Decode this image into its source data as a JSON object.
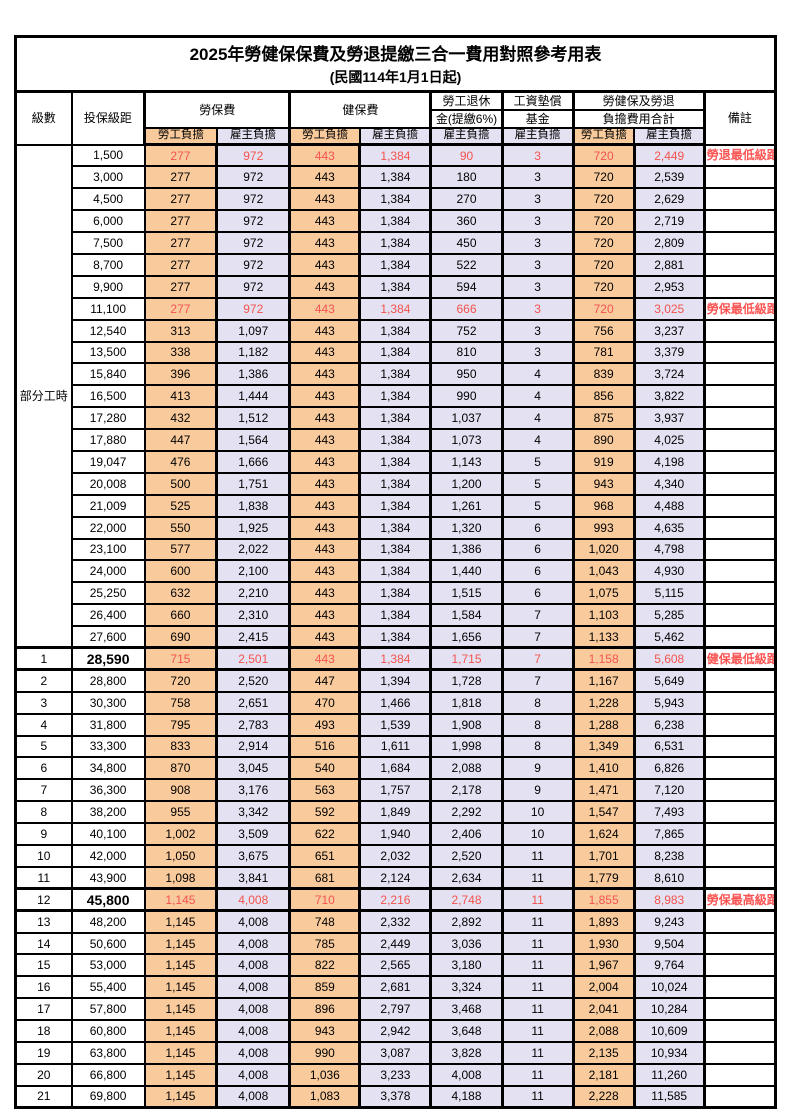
{
  "document": {
    "title": "2025年勞健保保費及勞退提繳三合一費用對照參考用表",
    "subtitle": "(民國114年1月1日起)"
  },
  "colors": {
    "employee_column_bg": "#f9cb9c",
    "employer_column_bg": "#e4e2f2",
    "highlight_text": "#f4534e",
    "note_text": "#fa5452",
    "grid_line": "#000000"
  },
  "header": {
    "level": "級數",
    "bracket": "投保級距",
    "labor_group": "勞保費",
    "health_group": "健保費",
    "pension_line1": "勞工退休",
    "pension_line2": "金(提繳6%)",
    "wage_fund_line1": "工資墊償",
    "wage_fund_line2": "基金",
    "total_line1": "勞健保及勞退",
    "total_line2": "負擔費用合計",
    "note": "備註",
    "employee": "勞工負擔",
    "employer": "雇主負擔"
  },
  "table": {
    "part_time_group_label": "部分工時",
    "part_time_row_count": 23,
    "value_column_names": [
      "labor-employee",
      "labor-employer",
      "health-employee",
      "health-employer",
      "pension-employer",
      "wage-fund-employer",
      "total-employee",
      "total-employer"
    ],
    "value_column_classes": [
      "emp",
      "er gl",
      "emp gl",
      "er gl",
      "er gl",
      "er gl",
      "emp gl",
      "er gl"
    ],
    "rows": [
      {
        "level": "",
        "bracket": "1,500",
        "values": [
          "277",
          "972",
          "443",
          "1,384",
          "90",
          "3",
          "720",
          "2,449"
        ],
        "note": "勞退最低級距",
        "red": true,
        "strong": false
      },
      {
        "level": "",
        "bracket": "3,000",
        "values": [
          "277",
          "972",
          "443",
          "1,384",
          "180",
          "3",
          "720",
          "2,539"
        ],
        "note": "",
        "red": false,
        "strong": false
      },
      {
        "level": "",
        "bracket": "4,500",
        "values": [
          "277",
          "972",
          "443",
          "1,384",
          "270",
          "3",
          "720",
          "2,629"
        ],
        "note": "",
        "red": false,
        "strong": false
      },
      {
        "level": "",
        "bracket": "6,000",
        "values": [
          "277",
          "972",
          "443",
          "1,384",
          "360",
          "3",
          "720",
          "2,719"
        ],
        "note": "",
        "red": false,
        "strong": false
      },
      {
        "level": "",
        "bracket": "7,500",
        "values": [
          "277",
          "972",
          "443",
          "1,384",
          "450",
          "3",
          "720",
          "2,809"
        ],
        "note": "",
        "red": false,
        "strong": false
      },
      {
        "level": "",
        "bracket": "8,700",
        "values": [
          "277",
          "972",
          "443",
          "1,384",
          "522",
          "3",
          "720",
          "2,881"
        ],
        "note": "",
        "red": false,
        "strong": false
      },
      {
        "level": "",
        "bracket": "9,900",
        "values": [
          "277",
          "972",
          "443",
          "1,384",
          "594",
          "3",
          "720",
          "2,953"
        ],
        "note": "",
        "red": false,
        "strong": false
      },
      {
        "level": "",
        "bracket": "11,100",
        "values": [
          "277",
          "972",
          "443",
          "1,384",
          "666",
          "3",
          "720",
          "3,025"
        ],
        "note": "勞保最低級距",
        "red": true,
        "strong": false
      },
      {
        "level": "",
        "bracket": "12,540",
        "values": [
          "313",
          "1,097",
          "443",
          "1,384",
          "752",
          "3",
          "756",
          "3,237"
        ],
        "note": "",
        "red": false,
        "strong": false
      },
      {
        "level": "",
        "bracket": "13,500",
        "values": [
          "338",
          "1,182",
          "443",
          "1,384",
          "810",
          "3",
          "781",
          "3,379"
        ],
        "note": "",
        "red": false,
        "strong": false
      },
      {
        "level": "",
        "bracket": "15,840",
        "values": [
          "396",
          "1,386",
          "443",
          "1,384",
          "950",
          "4",
          "839",
          "3,724"
        ],
        "note": "",
        "red": false,
        "strong": false
      },
      {
        "level": "",
        "bracket": "16,500",
        "values": [
          "413",
          "1,444",
          "443",
          "1,384",
          "990",
          "4",
          "856",
          "3,822"
        ],
        "note": "",
        "red": false,
        "strong": false
      },
      {
        "level": "",
        "bracket": "17,280",
        "values": [
          "432",
          "1,512",
          "443",
          "1,384",
          "1,037",
          "4",
          "875",
          "3,937"
        ],
        "note": "",
        "red": false,
        "strong": false
      },
      {
        "level": "",
        "bracket": "17,880",
        "values": [
          "447",
          "1,564",
          "443",
          "1,384",
          "1,073",
          "4",
          "890",
          "4,025"
        ],
        "note": "",
        "red": false,
        "strong": false
      },
      {
        "level": "",
        "bracket": "19,047",
        "values": [
          "476",
          "1,666",
          "443",
          "1,384",
          "1,143",
          "5",
          "919",
          "4,198"
        ],
        "note": "",
        "red": false,
        "strong": false
      },
      {
        "level": "",
        "bracket": "20,008",
        "values": [
          "500",
          "1,751",
          "443",
          "1,384",
          "1,200",
          "5",
          "943",
          "4,340"
        ],
        "note": "",
        "red": false,
        "strong": false
      },
      {
        "level": "",
        "bracket": "21,009",
        "values": [
          "525",
          "1,838",
          "443",
          "1,384",
          "1,261",
          "5",
          "968",
          "4,488"
        ],
        "note": "",
        "red": false,
        "strong": false
      },
      {
        "level": "",
        "bracket": "22,000",
        "values": [
          "550",
          "1,925",
          "443",
          "1,384",
          "1,320",
          "6",
          "993",
          "4,635"
        ],
        "note": "",
        "red": false,
        "strong": false
      },
      {
        "level": "",
        "bracket": "23,100",
        "values": [
          "577",
          "2,022",
          "443",
          "1,384",
          "1,386",
          "6",
          "1,020",
          "4,798"
        ],
        "note": "",
        "red": false,
        "strong": false
      },
      {
        "level": "",
        "bracket": "24,000",
        "values": [
          "600",
          "2,100",
          "443",
          "1,384",
          "1,440",
          "6",
          "1,043",
          "4,930"
        ],
        "note": "",
        "red": false,
        "strong": false
      },
      {
        "level": "",
        "bracket": "25,250",
        "values": [
          "632",
          "2,210",
          "443",
          "1,384",
          "1,515",
          "6",
          "1,075",
          "5,115"
        ],
        "note": "",
        "red": false,
        "strong": false
      },
      {
        "level": "",
        "bracket": "26,400",
        "values": [
          "660",
          "2,310",
          "443",
          "1,384",
          "1,584",
          "7",
          "1,103",
          "5,285"
        ],
        "note": "",
        "red": false,
        "strong": false
      },
      {
        "level": "",
        "bracket": "27,600",
        "values": [
          "690",
          "2,415",
          "443",
          "1,384",
          "1,656",
          "7",
          "1,133",
          "5,462"
        ],
        "note": "",
        "red": false,
        "strong": false
      },
      {
        "level": "1",
        "bracket": "28,590",
        "values": [
          "715",
          "2,501",
          "443",
          "1,384",
          "1,715",
          "7",
          "1,158",
          "5,608"
        ],
        "note": "健保最低級距",
        "red": true,
        "strong": true
      },
      {
        "level": "2",
        "bracket": "28,800",
        "values": [
          "720",
          "2,520",
          "447",
          "1,394",
          "1,728",
          "7",
          "1,167",
          "5,649"
        ],
        "note": "",
        "red": false,
        "strong": false
      },
      {
        "level": "3",
        "bracket": "30,300",
        "values": [
          "758",
          "2,651",
          "470",
          "1,466",
          "1,818",
          "8",
          "1,228",
          "5,943"
        ],
        "note": "",
        "red": false,
        "strong": false
      },
      {
        "level": "4",
        "bracket": "31,800",
        "values": [
          "795",
          "2,783",
          "493",
          "1,539",
          "1,908",
          "8",
          "1,288",
          "6,238"
        ],
        "note": "",
        "red": false,
        "strong": false
      },
      {
        "level": "5",
        "bracket": "33,300",
        "values": [
          "833",
          "2,914",
          "516",
          "1,611",
          "1,998",
          "8",
          "1,349",
          "6,531"
        ],
        "note": "",
        "red": false,
        "strong": false
      },
      {
        "level": "6",
        "bracket": "34,800",
        "values": [
          "870",
          "3,045",
          "540",
          "1,684",
          "2,088",
          "9",
          "1,410",
          "6,826"
        ],
        "note": "",
        "red": false,
        "strong": false
      },
      {
        "level": "7",
        "bracket": "36,300",
        "values": [
          "908",
          "3,176",
          "563",
          "1,757",
          "2,178",
          "9",
          "1,471",
          "7,120"
        ],
        "note": "",
        "red": false,
        "strong": false
      },
      {
        "level": "8",
        "bracket": "38,200",
        "values": [
          "955",
          "3,342",
          "592",
          "1,849",
          "2,292",
          "10",
          "1,547",
          "7,493"
        ],
        "note": "",
        "red": false,
        "strong": false
      },
      {
        "level": "9",
        "bracket": "40,100",
        "values": [
          "1,002",
          "3,509",
          "622",
          "1,940",
          "2,406",
          "10",
          "1,624",
          "7,865"
        ],
        "note": "",
        "red": false,
        "strong": false
      },
      {
        "level": "10",
        "bracket": "42,000",
        "values": [
          "1,050",
          "3,675",
          "651",
          "2,032",
          "2,520",
          "11",
          "1,701",
          "8,238"
        ],
        "note": "",
        "red": false,
        "strong": false
      },
      {
        "level": "11",
        "bracket": "43,900",
        "values": [
          "1,098",
          "3,841",
          "681",
          "2,124",
          "2,634",
          "11",
          "1,779",
          "8,610"
        ],
        "note": "",
        "red": false,
        "strong": false
      },
      {
        "level": "12",
        "bracket": "45,800",
        "values": [
          "1,145",
          "4,008",
          "710",
          "2,216",
          "2,748",
          "11",
          "1,855",
          "8,983"
        ],
        "note": "勞保最高級距",
        "red": true,
        "strong": true
      },
      {
        "level": "13",
        "bracket": "48,200",
        "values": [
          "1,145",
          "4,008",
          "748",
          "2,332",
          "2,892",
          "11",
          "1,893",
          "9,243"
        ],
        "note": "",
        "red": false,
        "strong": false
      },
      {
        "level": "14",
        "bracket": "50,600",
        "values": [
          "1,145",
          "4,008",
          "785",
          "2,449",
          "3,036",
          "11",
          "1,930",
          "9,504"
        ],
        "note": "",
        "red": false,
        "strong": false
      },
      {
        "level": "15",
        "bracket": "53,000",
        "values": [
          "1,145",
          "4,008",
          "822",
          "2,565",
          "3,180",
          "11",
          "1,967",
          "9,764"
        ],
        "note": "",
        "red": false,
        "strong": false
      },
      {
        "level": "16",
        "bracket": "55,400",
        "values": [
          "1,145",
          "4,008",
          "859",
          "2,681",
          "3,324",
          "11",
          "2,004",
          "10,024"
        ],
        "note": "",
        "red": false,
        "strong": false
      },
      {
        "level": "17",
        "bracket": "57,800",
        "values": [
          "1,145",
          "4,008",
          "896",
          "2,797",
          "3,468",
          "11",
          "2,041",
          "10,284"
        ],
        "note": "",
        "red": false,
        "strong": false
      },
      {
        "level": "18",
        "bracket": "60,800",
        "values": [
          "1,145",
          "4,008",
          "943",
          "2,942",
          "3,648",
          "11",
          "2,088",
          "10,609"
        ],
        "note": "",
        "red": false,
        "strong": false
      },
      {
        "level": "19",
        "bracket": "63,800",
        "values": [
          "1,145",
          "4,008",
          "990",
          "3,087",
          "3,828",
          "11",
          "2,135",
          "10,934"
        ],
        "note": "",
        "red": false,
        "strong": false
      },
      {
        "level": "20",
        "bracket": "66,800",
        "values": [
          "1,145",
          "4,008",
          "1,036",
          "3,233",
          "4,008",
          "11",
          "2,181",
          "11,260"
        ],
        "note": "",
        "red": false,
        "strong": false
      },
      {
        "level": "21",
        "bracket": "69,800",
        "values": [
          "1,145",
          "4,008",
          "1,083",
          "3,378",
          "4,188",
          "11",
          "2,228",
          "11,585"
        ],
        "note": "",
        "red": false,
        "strong": false
      }
    ]
  }
}
